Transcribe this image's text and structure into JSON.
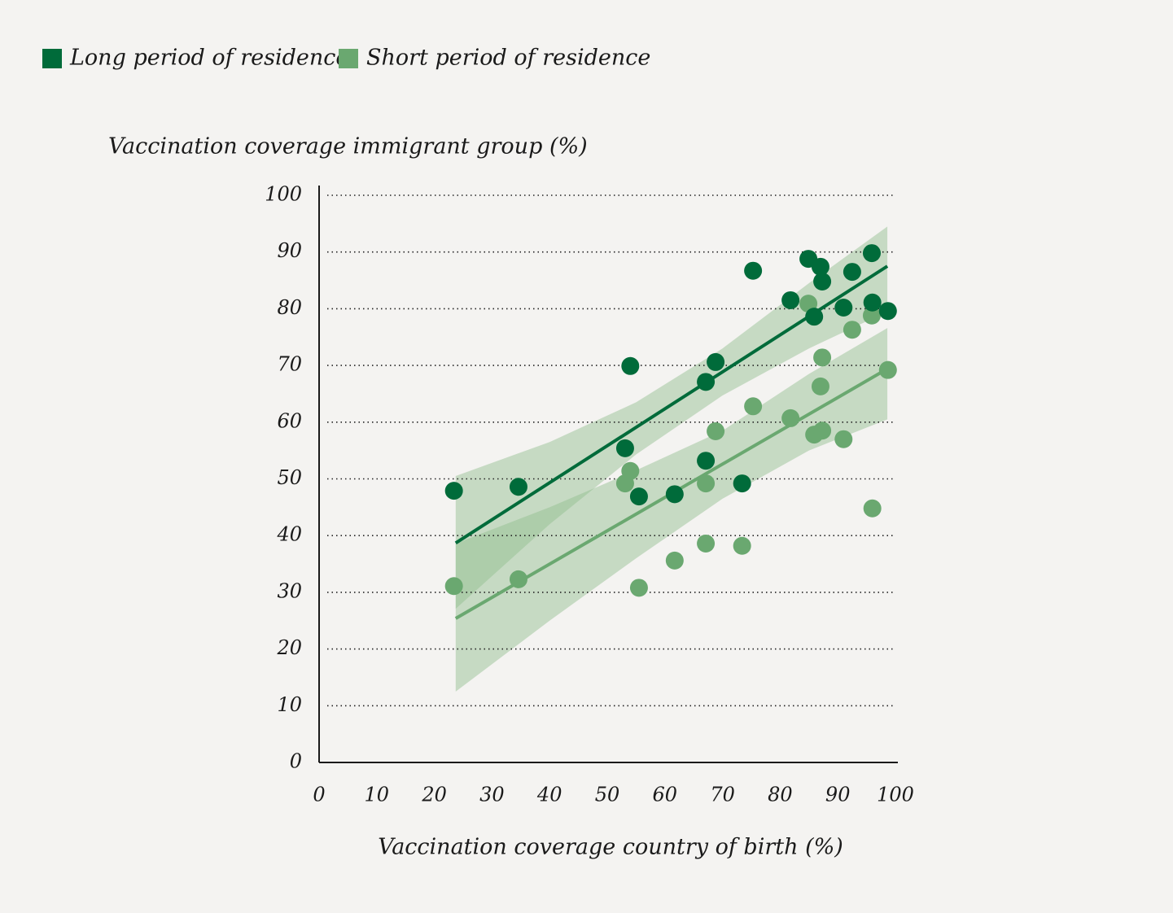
{
  "chart_data": {
    "type": "scatter",
    "x_label": "Vaccination coverage country of birth (%)",
    "y_label": "Vaccination coverage immigrant group (%)",
    "xlim": [
      0,
      100
    ],
    "ylim": [
      0,
      100
    ],
    "xticks": [
      0,
      10,
      20,
      30,
      40,
      50,
      60,
      70,
      80,
      90,
      100
    ],
    "yticks": [
      0,
      10,
      20,
      30,
      40,
      50,
      60,
      70,
      80,
      90,
      100
    ],
    "grid": true,
    "legend": "top-left",
    "series": [
      {
        "name": "Long period of residence",
        "color": "#006b3a",
        "x": [
          23.4,
          34.6,
          53.1,
          54.0,
          55.5,
          61.7,
          67.1,
          67.1,
          68.8,
          73.4,
          75.3,
          81.8,
          84.9,
          85.9,
          87.0,
          87.3,
          92.5,
          91.0,
          95.9,
          96.0,
          98.7
        ],
        "values": [
          47.9,
          48.6,
          55.4,
          69.9,
          46.9,
          47.3,
          53.2,
          67.1,
          70.6,
          49.2,
          86.7,
          81.5,
          88.8,
          78.6,
          87.4,
          84.8,
          86.5,
          80.2,
          89.8,
          81.1,
          79.6
        ],
        "trend": {
          "x": [
            23.7,
            98.6
          ],
          "values": [
            38.7,
            87.5
          ]
        },
        "band": {
          "x": [
            23.7,
            40,
            55,
            70,
            85,
            98.6
          ],
          "upper": [
            50.5,
            56.5,
            63.5,
            73,
            84.5,
            94.5
          ],
          "lower": [
            27.1,
            42,
            54.3,
            64.7,
            73,
            79.5
          ]
        }
      },
      {
        "name": "Short period of residence",
        "color": "#6aa870",
        "x": [
          23.4,
          34.6,
          53.1,
          54.0,
          55.5,
          61.7,
          67.1,
          67.1,
          68.8,
          73.4,
          75.3,
          81.8,
          84.9,
          85.9,
          87.0,
          87.3,
          87.3,
          92.5,
          91.0,
          95.9,
          96.0,
          98.7
        ],
        "values": [
          31.1,
          32.3,
          49.2,
          51.4,
          30.8,
          35.6,
          49.2,
          38.6,
          58.4,
          38.2,
          62.8,
          60.7,
          80.9,
          57.8,
          66.3,
          71.4,
          58.5,
          76.3,
          57.0,
          78.8,
          44.8,
          69.2
        ],
        "trend": {
          "x": [
            23.7,
            98.6
          ],
          "values": [
            25.4,
            69.4
          ]
        },
        "band": {
          "x": [
            23.7,
            40,
            55,
            70,
            85,
            98.6
          ],
          "upper": [
            38.6,
            45,
            51.5,
            58.5,
            68.5,
            76.6
          ],
          "lower": [
            12.5,
            25,
            36,
            46.5,
            55,
            60.5
          ]
        }
      }
    ],
    "band_color": "#8fbc8b"
  }
}
